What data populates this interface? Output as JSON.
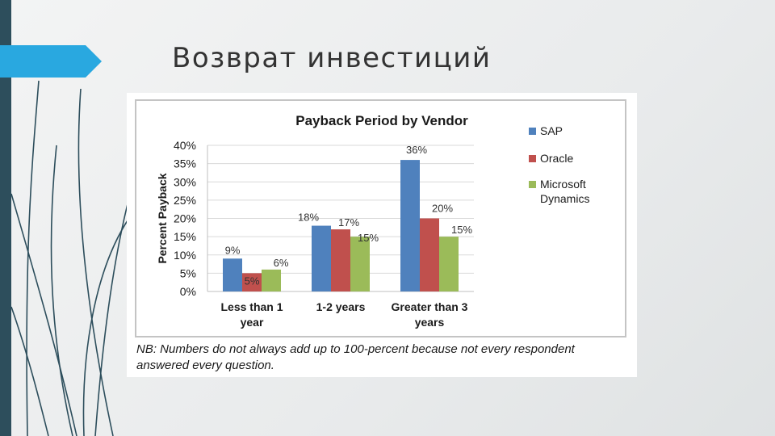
{
  "slide": {
    "title": "Возврат инвестиций",
    "accent_color": "#29a8e0",
    "strip_color": "#2d4e5c"
  },
  "chart_data": {
    "type": "bar",
    "title": "Payback Period by Vendor",
    "ylabel": "Percent Payback",
    "xlabel": "",
    "categories": [
      "Less than 1 year",
      "1-2 years",
      "Greater than 3 years"
    ],
    "category_lines": [
      [
        "Less than 1",
        "year"
      ],
      [
        "1-2 years"
      ],
      [
        "Greater than 3",
        "years"
      ]
    ],
    "series": [
      {
        "name": "SAP",
        "values": [
          9,
          18,
          36
        ],
        "labels": [
          "9%",
          "18%",
          "36%"
        ],
        "color": "#4f81bd"
      },
      {
        "name": "Oracle",
        "values": [
          5,
          17,
          20
        ],
        "labels": [
          "5%",
          "17%",
          "20%"
        ],
        "color": "#c0504d"
      },
      {
        "name": "Microsoft Dynamics",
        "values": [
          6,
          15,
          15
        ],
        "labels": [
          "6%",
          "15%",
          "15%"
        ],
        "color": "#9bbb59"
      }
    ],
    "legend_lines": [
      [
        "SAP"
      ],
      [
        "Oracle"
      ],
      [
        "Microsoft",
        "Dynamics"
      ]
    ],
    "ylim": [
      0,
      40
    ],
    "yticks": [
      "0%",
      "5%",
      "10%",
      "15%",
      "20%",
      "25%",
      "30%",
      "35%",
      "40%"
    ],
    "grid": true,
    "legend_position": "right",
    "note": "NB: Numbers do not always add up to 100-percent because not every respondent answered every question."
  }
}
